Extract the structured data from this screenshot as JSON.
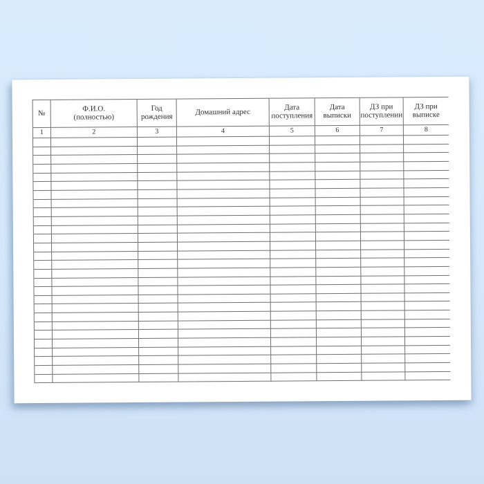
{
  "page": {
    "background_color": "#d6e9fc",
    "paper_color": "#ffffff"
  },
  "table": {
    "line_color": "#6f6f6f",
    "text_color": "#2f2f2f",
    "empty_row_count": 28,
    "columns": [
      {
        "number": "1",
        "label": "№"
      },
      {
        "number": "2",
        "label": "Ф.И.О.\n(полностью)"
      },
      {
        "number": "3",
        "label": "Год\nрождения"
      },
      {
        "number": "4",
        "label": "Домашний адрес"
      },
      {
        "number": "5",
        "label": "Дата\nпоступления"
      },
      {
        "number": "6",
        "label": "Дата выписки"
      },
      {
        "number": "7",
        "label": "ДЗ при\nпоступлении"
      },
      {
        "number": "8",
        "label": "ДЗ при\nвыписке"
      }
    ]
  }
}
